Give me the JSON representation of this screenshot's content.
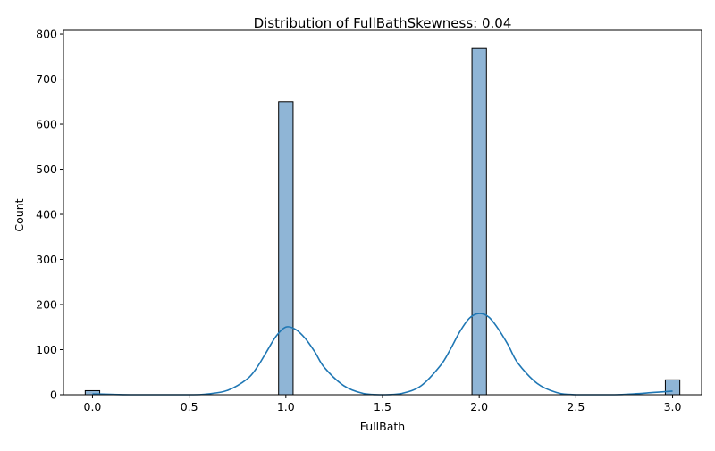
{
  "chart_data": {
    "type": "bar",
    "title": "Distribution of FullBathSkewness: 0.04",
    "xlabel": "FullBath",
    "ylabel": "Count",
    "xlim": [
      -0.15,
      3.15
    ],
    "ylim": [
      0,
      808
    ],
    "x_ticks": [
      "0.0",
      "0.5",
      "1.0",
      "1.5",
      "2.0",
      "2.5",
      "3.0"
    ],
    "x_tick_values": [
      0,
      0.5,
      1,
      1.5,
      2,
      2.5,
      3
    ],
    "y_ticks": [
      "0",
      "100",
      "200",
      "300",
      "400",
      "500",
      "600",
      "700",
      "800"
    ],
    "y_tick_values": [
      0,
      100,
      200,
      300,
      400,
      500,
      600,
      700,
      800
    ],
    "bin_width": 0.075,
    "bars": [
      {
        "x": 0.0,
        "count": 9
      },
      {
        "x": 1.0,
        "count": 650
      },
      {
        "x": 2.0,
        "count": 768
      },
      {
        "x": 3.0,
        "count": 33
      }
    ],
    "kde": [
      {
        "x": 0.0,
        "y": 2
      },
      {
        "x": 0.2,
        "y": 0
      },
      {
        "x": 0.5,
        "y": 0
      },
      {
        "x": 0.6,
        "y": 2
      },
      {
        "x": 0.7,
        "y": 10
      },
      {
        "x": 0.8,
        "y": 35
      },
      {
        "x": 0.85,
        "y": 60
      },
      {
        "x": 0.9,
        "y": 95
      },
      {
        "x": 0.95,
        "y": 130
      },
      {
        "x": 1.0,
        "y": 150
      },
      {
        "x": 1.05,
        "y": 145
      },
      {
        "x": 1.1,
        "y": 125
      },
      {
        "x": 1.15,
        "y": 95
      },
      {
        "x": 1.2,
        "y": 60
      },
      {
        "x": 1.3,
        "y": 20
      },
      {
        "x": 1.4,
        "y": 3
      },
      {
        "x": 1.5,
        "y": 0
      },
      {
        "x": 1.6,
        "y": 3
      },
      {
        "x": 1.7,
        "y": 20
      },
      {
        "x": 1.8,
        "y": 65
      },
      {
        "x": 1.85,
        "y": 100
      },
      {
        "x": 1.9,
        "y": 140
      },
      {
        "x": 1.95,
        "y": 170
      },
      {
        "x": 2.0,
        "y": 180
      },
      {
        "x": 2.05,
        "y": 172
      },
      {
        "x": 2.1,
        "y": 145
      },
      {
        "x": 2.15,
        "y": 110
      },
      {
        "x": 2.2,
        "y": 70
      },
      {
        "x": 2.3,
        "y": 25
      },
      {
        "x": 2.4,
        "y": 5
      },
      {
        "x": 2.5,
        "y": 0
      },
      {
        "x": 2.7,
        "y": 0
      },
      {
        "x": 2.8,
        "y": 2
      },
      {
        "x": 2.9,
        "y": 5
      },
      {
        "x": 3.0,
        "y": 8
      }
    ],
    "bar_fill": "#8fb5d6",
    "bar_edge": "#000000",
    "kde_color": "#1f77b4",
    "grid": false,
    "legend": "none"
  }
}
